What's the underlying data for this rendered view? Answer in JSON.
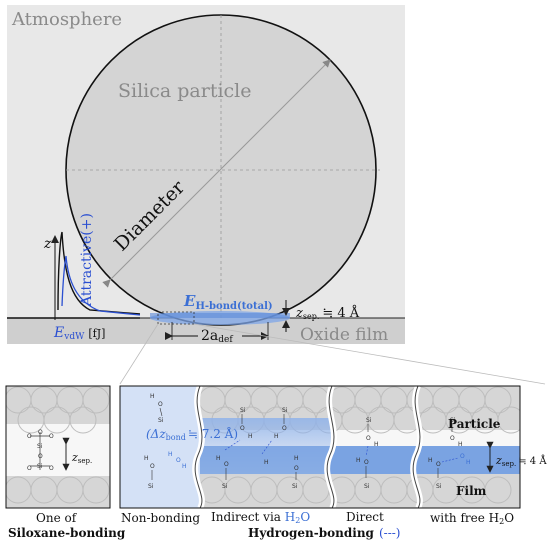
{
  "top": {
    "atmosphere": "Atmosphere",
    "particle": "Silica particle",
    "diameter": "Diameter",
    "oxide_film": "Oxide film",
    "z_axis": "z",
    "attractive": "Attractive(+)",
    "evdw": "E",
    "evdw_sub": "vdW",
    "evdw_unit": "[fJ]",
    "hbond_main": "E",
    "hbond_sub": "H-bond(total)",
    "zsep": "z",
    "zsep_sub": "sep.",
    "zsep_val": "≒ 4 Å",
    "adef": "2a",
    "adef_sub": "def"
  },
  "left_panel": {
    "zsep": "z",
    "zsep_sub": "sep.",
    "caption_line1": "One of",
    "caption_line2": "Siloxane-bonding",
    "atom_si": "Si",
    "atom_o": "O"
  },
  "right_panel": {
    "particle": "Particle",
    "film": "Film",
    "delta_label": "(Δz",
    "delta_sub": "bond",
    "delta_val": "≒ 7.2 Å)",
    "zsep": "z",
    "zsep_sub": "sep.",
    "zsep_val": "≒ 4 Å",
    "atom_si": "Si",
    "atom_o": "O",
    "atom_h": "H"
  },
  "captions": {
    "non_bonding": "Non-bonding",
    "indirect": "Indirect via ",
    "h2o": "H",
    "h2o_sub": "2",
    "h2o_end": "O",
    "direct": "Direct",
    "free": "with free H",
    "free_sub": "2",
    "free_end": "O",
    "hbond_group": "Hydrogen-bonding",
    "hbond_legend": "(---)"
  },
  "colors": {
    "background_gray": "#e9e9e9",
    "particle_gray": "#d4d4d4",
    "film_gray": "#cfcfcf",
    "hbond_blue": "#3b6fd4",
    "bond_blue_light": "#a9c4ee",
    "axis_blue": "#2a4fd1"
  }
}
